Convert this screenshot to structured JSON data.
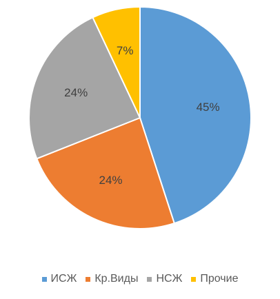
{
  "chart_data": {
    "type": "pie",
    "title": "",
    "categories": [
      "ИСЖ",
      "Кр.Виды",
      "НСЖ",
      "Прочие"
    ],
    "values": [
      45,
      24,
      24,
      7
    ],
    "labels": [
      "45%",
      "24%",
      "24%",
      "7%"
    ],
    "colors": [
      "#5B9BD5",
      "#ED7D31",
      "#A5A5A5",
      "#FFC000"
    ],
    "legend_position": "bottom",
    "start_angle_deg": 0,
    "direction": "clockwise"
  },
  "legend": {
    "items": [
      {
        "label": "ИСЖ",
        "color": "#5B9BD5"
      },
      {
        "label": "Кр.Виды",
        "color": "#ED7D31"
      },
      {
        "label": "НСЖ",
        "color": "#A5A5A5"
      },
      {
        "label": "Прочие",
        "color": "#FFC000"
      }
    ]
  }
}
